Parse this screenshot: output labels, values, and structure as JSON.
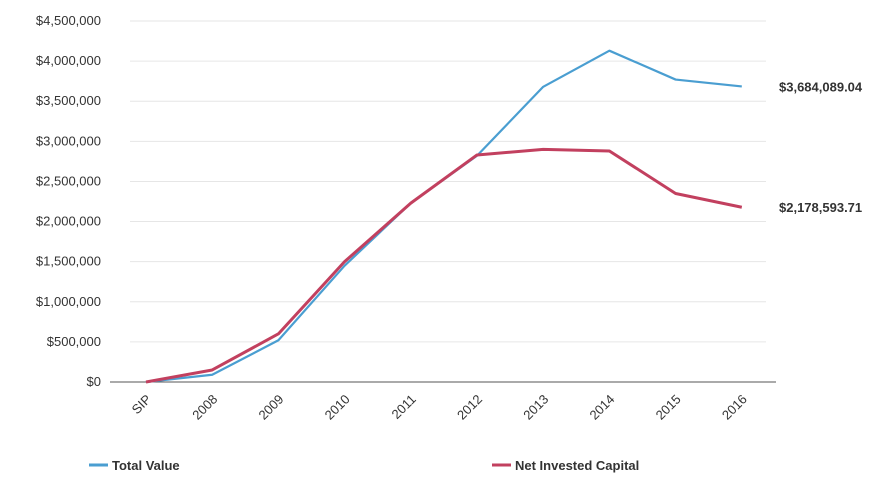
{
  "chart_data": {
    "type": "line",
    "categories": [
      "SIP",
      "2008",
      "2009",
      "2010",
      "2011",
      "2012",
      "2013",
      "2014",
      "2015",
      "2016"
    ],
    "ylim": [
      0,
      4500000
    ],
    "yticks": [
      0,
      500000,
      1000000,
      1500000,
      2000000,
      2500000,
      3000000,
      3500000,
      4000000,
      4500000
    ],
    "ytick_labels": [
      "$0",
      "$500,000",
      "$1,000,000",
      "$1,500,000",
      "$2,000,000",
      "$2,500,000",
      "$3,000,000",
      "$3,500,000",
      "$4,000,000",
      "$4,500,000"
    ],
    "grid": true,
    "legend_position": "bottom",
    "series": [
      {
        "name": "Total Value",
        "color": "#4a9ed1",
        "values": [
          0,
          90000,
          520000,
          1450000,
          2230000,
          2820000,
          3680000,
          4130000,
          3770000,
          3684089.04
        ],
        "end_label": "$3,684,089.04"
      },
      {
        "name": "Net Invested Capital",
        "color": "#c2405f",
        "values": [
          0,
          150000,
          600000,
          1500000,
          2230000,
          2830000,
          2900000,
          2880000,
          2350000,
          2178593.71
        ],
        "end_label": "$2,178,593.71"
      }
    ]
  }
}
